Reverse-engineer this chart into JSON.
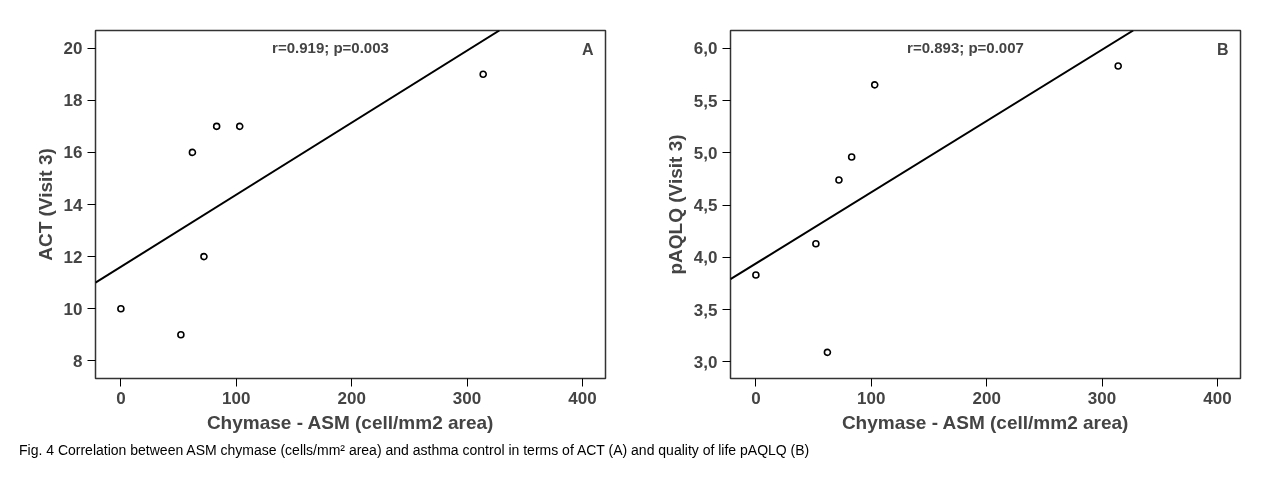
{
  "chart_data": [
    {
      "type": "scatter",
      "xlabel": "Chymase - ASM (cell/mm2 area)",
      "ylabel": "ACT (Visit 3)",
      "xlim": [
        -22,
        420
      ],
      "ylim": [
        7.32,
        20.68
      ],
      "xticks": [
        0,
        100,
        200,
        300,
        400
      ],
      "yticks": [
        8,
        10,
        12,
        14,
        16,
        18,
        20
      ],
      "grid": false,
      "series": [
        {
          "marker": "circle",
          "color": "#000000",
          "x": [
            0,
            52,
            62,
            72,
            83,
            103,
            314
          ],
          "values": [
            10,
            9,
            16,
            12,
            17,
            17,
            19
          ]
        },
        {
          "type": "line",
          "color": "#000000",
          "x": [
            -22,
            328
          ],
          "values": [
            11.0,
            20.68
          ]
        }
      ],
      "annotations": [
        "r=0.919; p=0.003",
        "A",
        "Fig. 4  Correlation between ASM chymase (cells/mm² area) and asthma control in terms of ACT (A) and quality of life pAQLQ (B)"
      ]
    },
    {
      "type": "scatter",
      "xlabel": "Chymase - ASM (cell/mm2 area)",
      "ylabel": "pAQLQ (Visit 3)",
      "xlim": [
        -22,
        420
      ],
      "ylim": [
        2.84,
        6.17
      ],
      "xticks": [
        0,
        100,
        200,
        300,
        400
      ],
      "yticks": [
        {
          "value": 3,
          "label": "3,0"
        },
        {
          "value": 3.5,
          "label": "3,5"
        },
        {
          "value": 4,
          "label": "4,0"
        },
        {
          "value": 4.5,
          "label": "4,5"
        },
        {
          "value": 5,
          "label": "5,0"
        },
        {
          "value": 5.5,
          "label": "5,5"
        },
        {
          "value": 6,
          "label": "6,0"
        }
      ],
      "grid": false,
      "series": [
        {
          "marker": "circle",
          "color": "#000000",
          "x": [
            0,
            52,
            62,
            72,
            83,
            103,
            314
          ],
          "values": [
            3.83,
            4.13,
            3.09,
            4.74,
            4.96,
            5.65,
            5.83
          ]
        },
        {
          "type": "line",
          "color": "#000000",
          "x": [
            -22,
            327
          ],
          "values": [
            3.79,
            6.17
          ]
        }
      ],
      "annotations": [
        "r=0.893; p=0.007",
        "B"
      ]
    }
  ]
}
